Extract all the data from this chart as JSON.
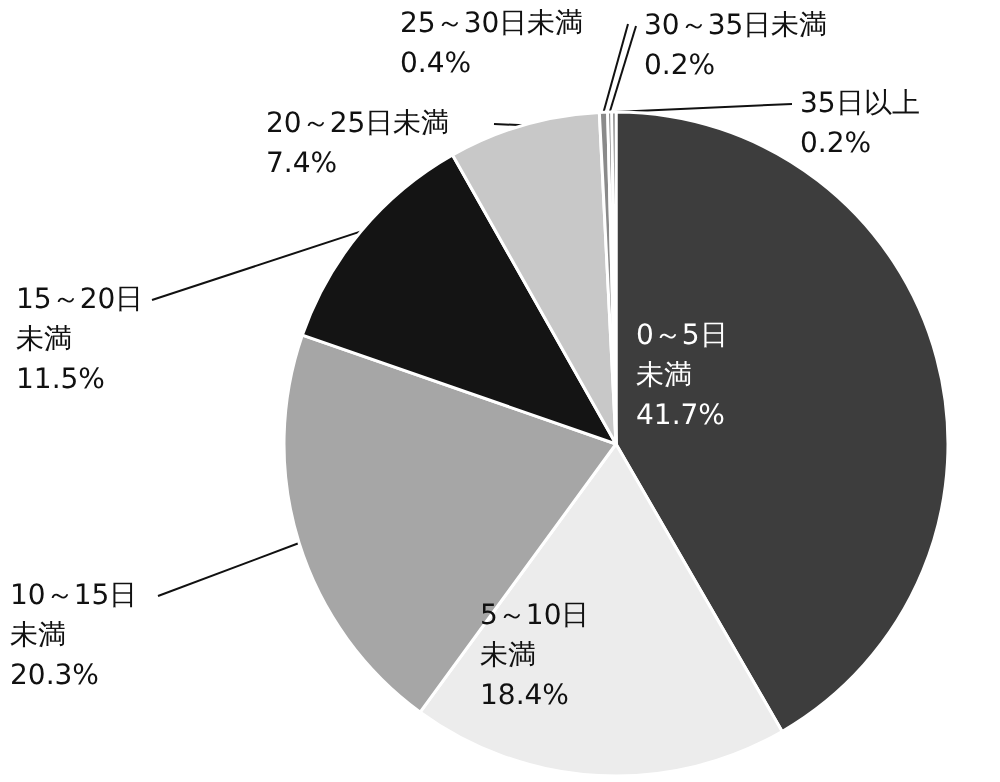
{
  "chart_data": {
    "type": "pie",
    "categories": [
      "0～5日未満",
      "5～10日未満",
      "10～15日未満",
      "15～20日未満",
      "20～25日未満",
      "25～30日未満",
      "30～35日未満",
      "35日以上"
    ],
    "values": [
      41.7,
      18.4,
      20.3,
      11.5,
      7.4,
      0.4,
      0.2,
      0.2
    ],
    "value_labels": [
      "41.7%",
      "18.4%",
      "20.3%",
      "11.5%",
      "7.4%",
      "0.4%",
      "0.2%",
      "0.2%"
    ],
    "colors": [
      "#3d3d3d",
      "#ececec",
      "#a6a6a6",
      "#141414",
      "#c8c8c8",
      "#8a8a8a",
      "#6a6a6a",
      "#555555"
    ],
    "legend": false
  }
}
